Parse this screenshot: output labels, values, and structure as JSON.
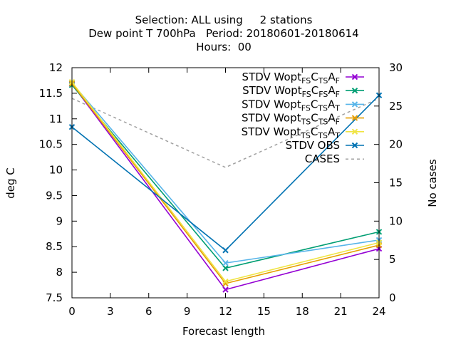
{
  "chart_data": {
    "type": "line",
    "title_lines": [
      "Selection: ALL using     2 stations",
      "Dew point T 700hPa   Period: 20180601-20180614",
      "Hours:  00"
    ],
    "xlabel": "Forecast length",
    "ylabel": "deg C",
    "y2label": "No cases",
    "x": [
      0,
      12,
      24
    ],
    "xlim": [
      0,
      24
    ],
    "ylim": [
      7.5,
      12
    ],
    "y2lim": [
      0,
      30
    ],
    "xticks": [
      "0",
      "3",
      "6",
      "9",
      "12",
      "15",
      "18",
      "21",
      "24"
    ],
    "yticks": [
      "7.5",
      "8",
      "8.5",
      "9",
      "9.5",
      "10",
      "10.5",
      "11",
      "11.5",
      "12"
    ],
    "y2ticks": [
      "0",
      "5",
      "10",
      "15",
      "20",
      "25",
      "30"
    ],
    "grid": false,
    "legend_position": "top-right",
    "series": [
      {
        "name": "STDV Wopt_FS C_TS A_F",
        "label_parts": [
          [
            "STDV Wopt",
            "n"
          ],
          [
            "FS",
            "sub"
          ],
          [
            "C",
            "n"
          ],
          [
            "TS",
            "sub"
          ],
          [
            "A",
            "n"
          ],
          [
            "F",
            "sub"
          ]
        ],
        "color": "#9400d3",
        "marker": "x",
        "axis": "y",
        "values": [
          11.68,
          7.66,
          8.46
        ]
      },
      {
        "name": "STDV Wopt_FS C_FS A_F",
        "label_parts": [
          [
            "STDV Wopt",
            "n"
          ],
          [
            "FS",
            "sub"
          ],
          [
            "C",
            "n"
          ],
          [
            "FS",
            "sub"
          ],
          [
            "A",
            "n"
          ],
          [
            "F",
            "sub"
          ]
        ],
        "color": "#009e73",
        "marker": "x",
        "axis": "y",
        "values": [
          11.66,
          8.08,
          8.79
        ]
      },
      {
        "name": "STDV Wopt_FS C_TS A_T",
        "label_parts": [
          [
            "STDV Wopt",
            "n"
          ],
          [
            "FS",
            "sub"
          ],
          [
            "C",
            "n"
          ],
          [
            "TS",
            "sub"
          ],
          [
            "A",
            "n"
          ],
          [
            "T",
            "sub"
          ]
        ],
        "color": "#56b4e9",
        "marker": "x",
        "axis": "y",
        "values": [
          11.7,
          8.18,
          8.63
        ]
      },
      {
        "name": "STDV Wopt_TS C_TS A_F",
        "label_parts": [
          [
            "STDV Wopt",
            "n"
          ],
          [
            "TS",
            "sub"
          ],
          [
            "C",
            "n"
          ],
          [
            "TS",
            "sub"
          ],
          [
            "A",
            "n"
          ],
          [
            "F",
            "sub"
          ]
        ],
        "color": "#e69f00",
        "marker": "x",
        "axis": "y",
        "values": [
          11.69,
          7.78,
          8.53
        ]
      },
      {
        "name": "STDV Wopt_TS C_TS A_T",
        "label_parts": [
          [
            "STDV Wopt",
            "n"
          ],
          [
            "TS",
            "sub"
          ],
          [
            "C",
            "n"
          ],
          [
            "TS",
            "sub"
          ],
          [
            "A",
            "n"
          ],
          [
            "T",
            "sub"
          ]
        ],
        "color": "#f0e442",
        "marker": "x",
        "axis": "y",
        "values": [
          11.72,
          7.82,
          8.58
        ]
      },
      {
        "name": "STDV OBS",
        "label_parts": [
          [
            "STDV OBS",
            "n"
          ]
        ],
        "color": "#0072b2",
        "marker": "x",
        "axis": "y",
        "values": [
          10.84,
          8.43,
          11.46
        ]
      },
      {
        "name": "CASES",
        "label_parts": [
          [
            "CASES",
            "n"
          ]
        ],
        "color": "#a0a0a0",
        "marker": "none",
        "dash": true,
        "axis": "y2",
        "values": [
          26,
          17,
          26
        ]
      }
    ]
  }
}
